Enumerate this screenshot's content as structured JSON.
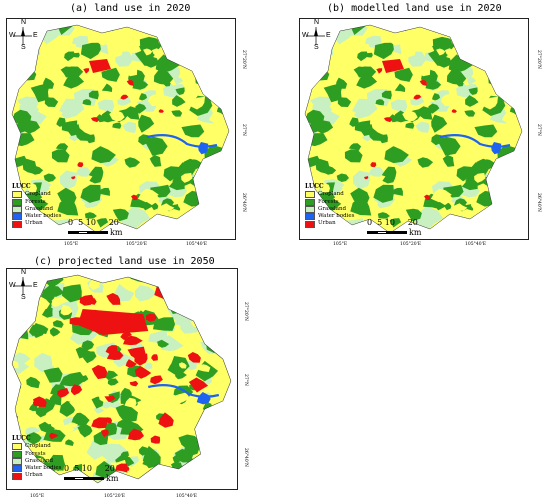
{
  "panels": [
    {
      "title": "(a) land use in 2020",
      "legend": {
        "title": "LUCC",
        "items": [
          "Cropland",
          "Forests",
          "Grassland",
          "Water bodies",
          "Urban"
        ]
      },
      "scale": {
        "numbers": "0  5 10     20",
        "unit": "km"
      },
      "x_ticks": [
        "105°E",
        "105°20'E",
        "105°40'E"
      ],
      "y_ticks": [
        "27°20'N",
        "27°N",
        "26°40'N"
      ],
      "compass": {
        "n": "N",
        "s": "S",
        "e": "E",
        "w": "W"
      }
    },
    {
      "title": "(b) modelled land use in 2020",
      "legend": {
        "title": "LUCC",
        "items": [
          "Cropland",
          "Forests",
          "Grassland",
          "Water bodies",
          "Urban"
        ]
      },
      "scale": {
        "numbers": "0  5 10     20",
        "unit": "km"
      },
      "x_ticks": [
        "105°E",
        "105°20'E",
        "105°40'E"
      ],
      "y_ticks": [
        "27°20'N",
        "27°N",
        "26°40'N"
      ],
      "compass": {
        "n": "N",
        "s": "S",
        "e": "E",
        "w": "W"
      }
    },
    {
      "title": "(c) projected land use in 2050",
      "legend": {
        "title": "LUCC",
        "items": [
          "Cropland",
          "Forests",
          "Grassland",
          "Water bodies",
          "Urban"
        ]
      },
      "scale": {
        "numbers": "0  5 10     20",
        "unit": "km"
      },
      "x_ticks": [
        "105°E",
        "105°20'E",
        "105°40'E"
      ],
      "y_ticks": [
        "27°20'N",
        "27°N",
        "26°40'N"
      ],
      "compass": {
        "n": "N",
        "s": "S",
        "e": "E",
        "w": "W"
      }
    }
  ],
  "colors": {
    "cropland": "#ffff66",
    "forests": "#2e9e22",
    "grassland": "#c8f0c0",
    "water": "#1e64f0",
    "urban": "#ee1111"
  }
}
